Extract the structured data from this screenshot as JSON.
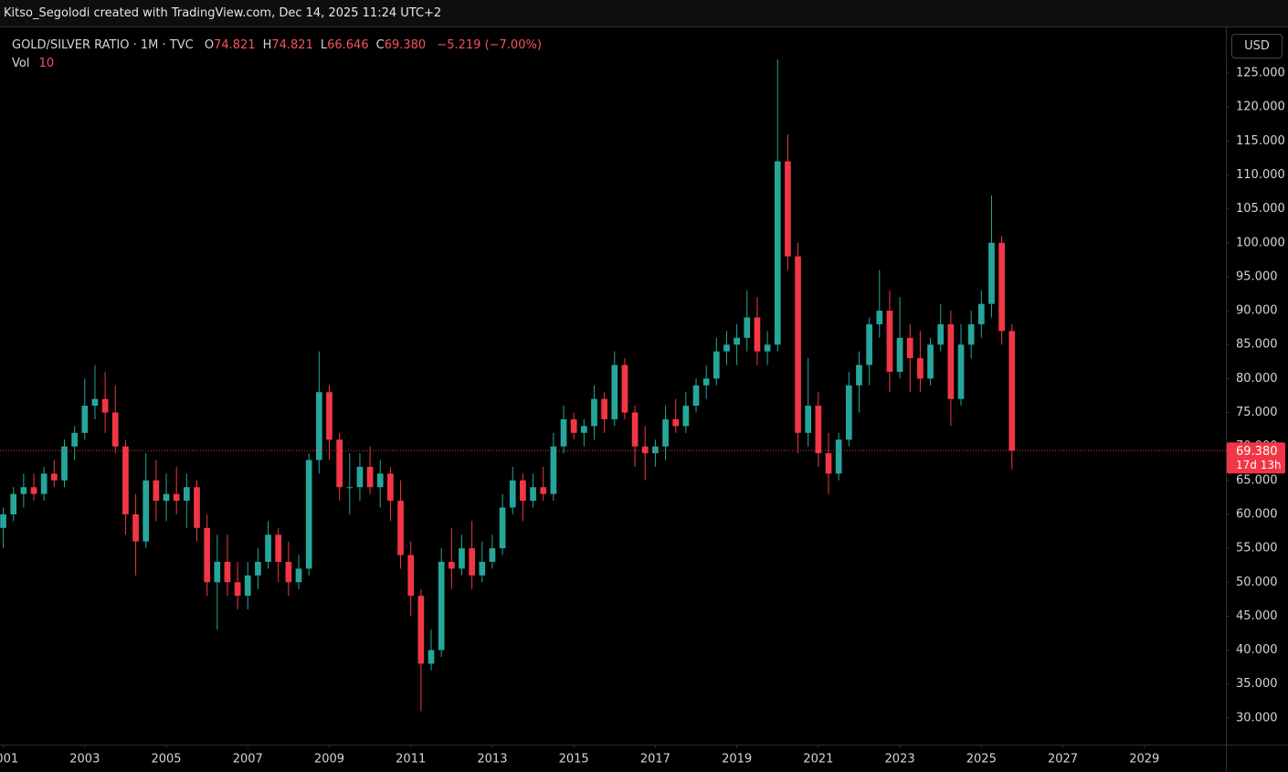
{
  "chart_data": {
    "type": "candlestick",
    "header": "Kitso_Segolodi created with TradingView.com, Dec 14, 2025 11:24 UTC+2",
    "currency": "USD",
    "legend": {
      "symbol": "GOLD/SILVER RATIO · 1M · TVC",
      "fields": [
        {
          "label": "O",
          "value": 74.821
        },
        {
          "label": "H",
          "value": 74.821
        },
        {
          "label": "L",
          "value": 66.646
        },
        {
          "label": "C",
          "value": 69.38,
          "value_label": "69.380"
        }
      ],
      "change": "−5.219 (−7.00%)",
      "volume_label": "Vol",
      "volume": 10
    },
    "price_line": {
      "value": 69.38,
      "label": "69.380",
      "countdown": "17d 13h"
    },
    "up_color": "#26a69a",
    "down_color": "#f23645",
    "grid": false,
    "xlim": [
      2000.92,
      2031.0
    ],
    "ylim": [
      26.08,
      131.73
    ],
    "xticks": [
      {
        "value": 2001,
        "label": "2001"
      },
      {
        "value": 2003,
        "label": "2003"
      },
      {
        "value": 2005,
        "label": "2005"
      },
      {
        "value": 2007,
        "label": "2007"
      },
      {
        "value": 2009,
        "label": "2009"
      },
      {
        "value": 2011,
        "label": "2011"
      },
      {
        "value": 2013,
        "label": "2013"
      },
      {
        "value": 2015,
        "label": "2015"
      },
      {
        "value": 2017,
        "label": "2017"
      },
      {
        "value": 2019,
        "label": "2019"
      },
      {
        "value": 2021,
        "label": "2021"
      },
      {
        "value": 2023,
        "label": "2023"
      },
      {
        "value": 2025,
        "label": "2025"
      },
      {
        "value": 2027,
        "label": "2027"
      },
      {
        "value": 2029,
        "label": "2029"
      }
    ],
    "yticks": [
      {
        "value": 30,
        "label": "30.000"
      },
      {
        "value": 35,
        "label": "35.000"
      },
      {
        "value": 40,
        "label": "40.000"
      },
      {
        "value": 45,
        "label": "45.000"
      },
      {
        "value": 50,
        "label": "50.000"
      },
      {
        "value": 55,
        "label": "55.000"
      },
      {
        "value": 60,
        "label": "60.000"
      },
      {
        "value": 65,
        "label": "65.000"
      },
      {
        "value": 70,
        "label": "70.000"
      },
      {
        "value": 75,
        "label": "75.000"
      },
      {
        "value": 80,
        "label": "80.000"
      },
      {
        "value": 85,
        "label": "85.000"
      },
      {
        "value": 90,
        "label": "90.000"
      },
      {
        "value": 95,
        "label": "95.000"
      },
      {
        "value": 100,
        "label": "100.000"
      },
      {
        "value": 105,
        "label": "105.000"
      },
      {
        "value": 110,
        "label": "110.000"
      },
      {
        "value": 115,
        "label": "115.000"
      },
      {
        "value": 120,
        "label": "120.000"
      },
      {
        "value": 125,
        "label": "125.000"
      }
    ],
    "x": [
      2001.0,
      2001.25,
      2001.5,
      2001.75,
      2002.0,
      2002.25,
      2002.5,
      2002.75,
      2003.0,
      2003.25,
      2003.5,
      2003.75,
      2004.0,
      2004.25,
      2004.5,
      2004.75,
      2005.0,
      2005.25,
      2005.5,
      2005.75,
      2006.0,
      2006.25,
      2006.5,
      2006.75,
      2007.0,
      2007.25,
      2007.5,
      2007.75,
      2008.0,
      2008.25,
      2008.5,
      2008.75,
      2009.0,
      2009.25,
      2009.5,
      2009.75,
      2010.0,
      2010.25,
      2010.5,
      2010.75,
      2011.0,
      2011.25,
      2011.5,
      2011.75,
      2012.0,
      2012.25,
      2012.5,
      2012.75,
      2013.0,
      2013.25,
      2013.5,
      2013.75,
      2014.0,
      2014.25,
      2014.5,
      2014.75,
      2015.0,
      2015.25,
      2015.5,
      2015.75,
      2016.0,
      2016.25,
      2016.5,
      2016.75,
      2017.0,
      2017.25,
      2017.5,
      2017.75,
      2018.0,
      2018.25,
      2018.5,
      2018.75,
      2019.0,
      2019.25,
      2019.5,
      2019.75,
      2020.0,
      2020.25,
      2020.5,
      2020.75,
      2021.0,
      2021.25,
      2021.5,
      2021.75,
      2022.0,
      2022.25,
      2022.5,
      2022.75,
      2023.0,
      2023.25,
      2023.5,
      2023.75,
      2024.0,
      2024.25,
      2024.5,
      2024.75,
      2025.0,
      2025.25,
      2025.5,
      2025.75
    ],
    "open": [
      58,
      60,
      63,
      64,
      63,
      66,
      65,
      70,
      72,
      76,
      77,
      75,
      70,
      60,
      56,
      65,
      62,
      63,
      62,
      64,
      58,
      50,
      53,
      50,
      48,
      51,
      53,
      57,
      53,
      50,
      52,
      68,
      78,
      71,
      64,
      64,
      67,
      64,
      66,
      62,
      54,
      48,
      38,
      40,
      53,
      52,
      55,
      51,
      53,
      55,
      61,
      65,
      62,
      64,
      63,
      70,
      74,
      72,
      73,
      77,
      74,
      82,
      75,
      70,
      69,
      70,
      74,
      73,
      76,
      79,
      80,
      84,
      85,
      86,
      89,
      84,
      85,
      112,
      98,
      72,
      76,
      69,
      66,
      71,
      79,
      82,
      88,
      90,
      81,
      86,
      83,
      80,
      85,
      88,
      77,
      85,
      88,
      91,
      100,
      87
    ],
    "high": [
      61,
      64,
      66,
      66,
      67,
      68,
      71,
      73,
      80,
      82,
      81,
      79,
      71,
      63,
      69,
      68,
      66,
      67,
      66,
      65,
      60,
      57,
      57,
      53,
      53,
      55,
      59,
      58,
      56,
      54,
      69,
      84,
      79,
      72,
      69,
      69,
      70,
      68,
      67,
      65,
      56,
      49,
      43,
      55,
      58,
      57,
      59,
      56,
      57,
      63,
      67,
      66,
      66,
      67,
      72,
      76,
      75,
      74,
      79,
      78,
      84,
      83,
      76,
      73,
      71,
      76,
      77,
      78,
      80,
      82,
      86,
      87,
      88,
      93,
      92,
      87,
      127,
      116,
      100,
      83,
      78,
      72,
      72,
      81,
      84,
      89,
      96,
      93,
      92,
      88,
      87,
      86,
      91,
      90,
      88,
      90,
      93,
      107,
      101,
      88
    ],
    "low": [
      55,
      59,
      61,
      62,
      62,
      64,
      64,
      68,
      71,
      74,
      72,
      69,
      57,
      51,
      55,
      59,
      59,
      60,
      58,
      56,
      48,
      43,
      48,
      46,
      46,
      49,
      52,
      50,
      48,
      49,
      51,
      66,
      68,
      62,
      60,
      62,
      63,
      61,
      59,
      52,
      45,
      31,
      37,
      39,
      49,
      51,
      49,
      50,
      52,
      54,
      60,
      59,
      61,
      62,
      62,
      69,
      71,
      70,
      71,
      72,
      73,
      74,
      67,
      65,
      67,
      68,
      72,
      72,
      75,
      77,
      79,
      82,
      82,
      84,
      82,
      82,
      84,
      96,
      69,
      70,
      67,
      63,
      65,
      70,
      75,
      79,
      86,
      78,
      80,
      78,
      78,
      79,
      84,
      73,
      76,
      83,
      86,
      89,
      85,
      66.646
    ],
    "close": [
      60,
      63,
      64,
      63,
      66,
      65,
      70,
      72,
      76,
      77,
      75,
      70,
      60,
      56,
      65,
      62,
      63,
      62,
      64,
      58,
      50,
      53,
      50,
      48,
      51,
      53,
      57,
      53,
      50,
      52,
      68,
      78,
      71,
      64,
      64,
      67,
      64,
      66,
      62,
      54,
      48,
      38,
      40,
      53,
      52,
      55,
      51,
      53,
      55,
      61,
      65,
      62,
      64,
      63,
      70,
      74,
      72,
      73,
      77,
      74,
      82,
      75,
      70,
      69,
      70,
      74,
      73,
      76,
      79,
      80,
      84,
      85,
      86,
      89,
      84,
      85,
      112,
      98,
      72,
      76,
      69,
      66,
      71,
      79,
      82,
      88,
      90,
      81,
      86,
      83,
      80,
      85,
      88,
      77,
      85,
      88,
      91,
      100,
      87,
      69.38
    ]
  }
}
